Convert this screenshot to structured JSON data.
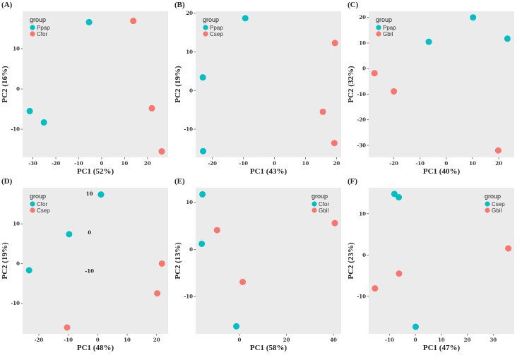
{
  "colors": {
    "group1": "#00BFC4",
    "group2": "#F8766D",
    "panel_bg": "#EBEBEB"
  },
  "chart_data": [
    {
      "type": "scatter",
      "panel_label": "(A)",
      "xlabel": "PC1 (52%)",
      "ylabel": "PC2 (16%)",
      "xlim": [
        -34.5,
        29
      ],
      "ylim": [
        -17,
        19.3
      ],
      "xticks": [
        -30,
        -20,
        -10,
        0,
        10,
        20
      ],
      "yticks": [
        -10,
        0,
        10
      ],
      "legend": {
        "title": "group",
        "placement": "top-left"
      },
      "series": [
        {
          "name": "Ppap",
          "points": [
            [
              -5.5,
              16.6
            ],
            [
              -31.4,
              -5.5
            ],
            [
              -25.2,
              -8.3
            ]
          ]
        },
        {
          "name": "Cfor",
          "points": [
            [
              13.8,
              16.9
            ],
            [
              21.9,
              -4.8
            ],
            [
              26.2,
              -15.5
            ]
          ]
        }
      ]
    },
    {
      "type": "scatter",
      "panel_label": "(B)",
      "xlabel": "PC1 (43%)",
      "ylabel": "PC2 (19%)",
      "xlim": [
        -25.4,
        21.5
      ],
      "ylim": [
        -17.3,
        20.5
      ],
      "xticks": [
        -20,
        -10,
        0,
        10,
        20
      ],
      "yticks": [
        -10,
        0,
        10,
        20
      ],
      "legend": {
        "title": "group",
        "placement": "top-left"
      },
      "series": [
        {
          "name": "Ppap",
          "points": [
            [
              -9.4,
              18.7
            ],
            [
              -23.1,
              3.4
            ],
            [
              -23,
              -15.7
            ]
          ]
        },
        {
          "name": "Csep",
          "points": [
            [
              19.5,
              12.3
            ],
            [
              15.6,
              -5.5
            ],
            [
              19.3,
              -13.6
            ]
          ]
        }
      ]
    },
    {
      "type": "scatter",
      "panel_label": "(C)",
      "xlabel": "PC1 (40%)",
      "ylabel": "PC2 (32%)",
      "xlim": [
        -29.6,
        25.9
      ],
      "ylim": [
        -34.7,
        22.4
      ],
      "xticks": [
        -20,
        -10,
        0,
        10,
        20
      ],
      "yticks": [
        -30,
        -20,
        -10,
        0,
        10,
        20
      ],
      "legend": {
        "title": "group",
        "placement": "top-left"
      },
      "series": [
        {
          "name": "Ppap",
          "points": [
            [
              10.2,
              20
            ],
            [
              23.3,
              11.7
            ],
            [
              -6.7,
              10.5
            ]
          ]
        },
        {
          "name": "Gbil",
          "points": [
            [
              -27.4,
              -1.8
            ],
            [
              -20,
              -8.9
            ],
            [
              19.8,
              -32
            ]
          ]
        }
      ]
    },
    {
      "type": "scatter",
      "panel_label": "(D)",
      "xlabel": "PC1 (48%)",
      "ylabel": "PC2 (19%)",
      "xlim": [
        -25.5,
        23.9
      ],
      "ylim": [
        -17.7,
        19.1
      ],
      "xticks": [
        -20,
        -10,
        0,
        10,
        20
      ],
      "yticks": [
        -10,
        0,
        10
      ],
      "legend": {
        "title": "group",
        "placement": "top-left"
      },
      "annotations": [
        {
          "text": "10",
          "x": -2.8,
          "y": 17.6
        },
        {
          "text": "0",
          "x": -2.8,
          "y": 7.8
        },
        {
          "text": "-10",
          "x": -2.8,
          "y": -1.9
        }
      ],
      "series": [
        {
          "name": "Cfor",
          "points": [
            [
              1.1,
              17.4
            ],
            [
              -9.7,
              7.4
            ],
            [
              -23.3,
              -1.7
            ]
          ]
        },
        {
          "name": "Csep",
          "points": [
            [
              21.8,
              0
            ],
            [
              20.2,
              -7.5
            ],
            [
              -10.4,
              -16.1
            ]
          ]
        }
      ]
    },
    {
      "type": "scatter",
      "panel_label": "(E)",
      "xlabel": "PC1 (58%)",
      "ylabel": "PC2 (13%)",
      "xlim": [
        -18.6,
        43.3
      ],
      "ylim": [
        -17.9,
        13.1
      ],
      "xticks": [
        0,
        20,
        40
      ],
      "yticks": [
        -10,
        0,
        10
      ],
      "legend": {
        "title": "group",
        "placement": "top-right"
      },
      "series": [
        {
          "name": "Cfor",
          "points": [
            [
              -15.7,
              11.7
            ],
            [
              -16,
              1.2
            ],
            [
              -1.3,
              -16.3
            ]
          ]
        },
        {
          "name": "Gbil",
          "points": [
            [
              -9.5,
              4.1
            ],
            [
              1.4,
              -6.9
            ],
            [
              40.6,
              5.6
            ]
          ]
        }
      ]
    },
    {
      "type": "scatter",
      "panel_label": "(F)",
      "xlabel": "PC1 (47%)",
      "ylabel": "PC2 (23%)",
      "xlim": [
        -18,
        38.1
      ],
      "ylim": [
        -19.1,
        16.3
      ],
      "xticks": [
        -10,
        0,
        10,
        20,
        30
      ],
      "yticks": [
        -10,
        0,
        10
      ],
      "legend": {
        "title": "group",
        "placement": "top-right"
      },
      "series": [
        {
          "name": "Csep",
          "points": [
            [
              -8.1,
              14.8
            ],
            [
              -6.4,
              14
            ],
            [
              0.1,
              -17.4
            ]
          ]
        },
        {
          "name": "Gbil",
          "points": [
            [
              35.8,
              1.6
            ],
            [
              -6.3,
              -4.5
            ],
            [
              -15.6,
              -8.1
            ]
          ]
        }
      ]
    }
  ]
}
